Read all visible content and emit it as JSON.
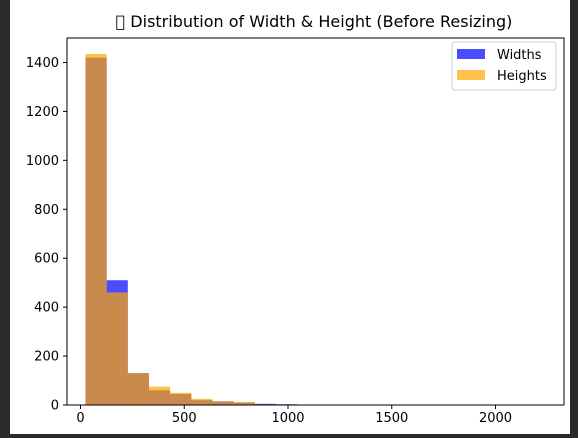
{
  "chart_data": {
    "type": "bar",
    "title": "󰀀 Distribution of Width & Height (Before Resizing)",
    "xlabel": "",
    "ylabel": "",
    "xlim": [
      -65,
      2330
    ],
    "ylim": [
      0,
      1500
    ],
    "x_ticks": [
      0,
      500,
      1000,
      1500,
      2000
    ],
    "y_ticks": [
      0,
      200,
      400,
      600,
      800,
      1000,
      1200,
      1400
    ],
    "grid": false,
    "legend_position": "top-right",
    "series": [
      {
        "name": "Widths",
        "color": "#0000ff",
        "alpha": 0.7,
        "bin_start": 24,
        "bin_width": 102,
        "values": [
          1420,
          510,
          130,
          60,
          45,
          20,
          15,
          10,
          5,
          3,
          2,
          1,
          1,
          1,
          0,
          0,
          0,
          0,
          0,
          0,
          0,
          1
        ]
      },
      {
        "name": "Heights",
        "color": "#ffa500",
        "alpha": 0.7,
        "bin_start": 24,
        "bin_width": 102,
        "values": [
          1435,
          460,
          130,
          75,
          50,
          25,
          15,
          12,
          3,
          2,
          1
        ]
      }
    ]
  }
}
